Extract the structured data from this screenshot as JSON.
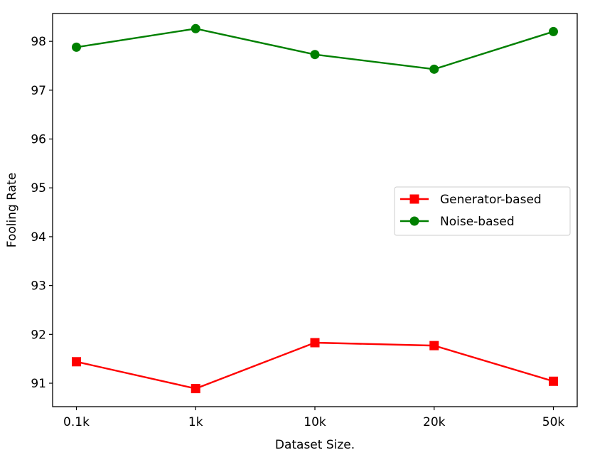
{
  "chart_data": {
    "type": "line",
    "categories": [
      "0.1k",
      "1k",
      "10k",
      "20k",
      "50k"
    ],
    "xlabel": "Dataset Size.",
    "ylabel": "Fooling Rate",
    "ylim": [
      90.52,
      98.57
    ],
    "yticks": [
      91,
      92,
      93,
      94,
      95,
      96,
      97,
      98
    ],
    "grid": false,
    "legend_position": "center-right",
    "series": [
      {
        "name": "Generator-based",
        "color": "#ff0000",
        "marker": "square",
        "values": [
          91.44,
          90.89,
          91.83,
          91.77,
          91.04
        ]
      },
      {
        "name": "Noise-based",
        "color": "#008000",
        "marker": "circle",
        "values": [
          97.88,
          98.26,
          97.73,
          97.43,
          98.2
        ]
      }
    ]
  }
}
